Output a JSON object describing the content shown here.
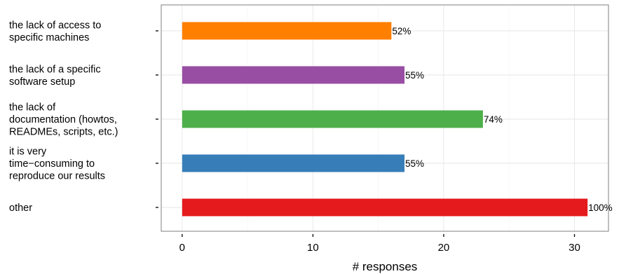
{
  "chart_data": {
    "type": "bar",
    "orientation": "horizontal",
    "categories": [
      [
        "the lack of access to",
        "specific machines"
      ],
      [
        "the lack of a specific",
        "software setup"
      ],
      [
        "the lack of",
        "documentation (howtos,",
        "READMEs, scripts, etc.)"
      ],
      [
        "it is very",
        "time−consuming to",
        "reproduce our results"
      ],
      [
        "other"
      ]
    ],
    "values": [
      16,
      17,
      23,
      17,
      31
    ],
    "data_labels": [
      "52%",
      "55%",
      "74%",
      "55%",
      "100%"
    ],
    "colors": [
      "#ff7f00",
      "#984ea3",
      "#4daf4a",
      "#377eb8",
      "#e41a1c"
    ],
    "xlim": [
      -1.6,
      32.6
    ],
    "xticks": [
      0,
      10,
      20,
      30
    ],
    "xtick_labels": [
      "0",
      "10",
      "20",
      "30"
    ],
    "xlabel": "# responses",
    "ylabel": "",
    "title": "",
    "grid": true,
    "legend": "none"
  }
}
